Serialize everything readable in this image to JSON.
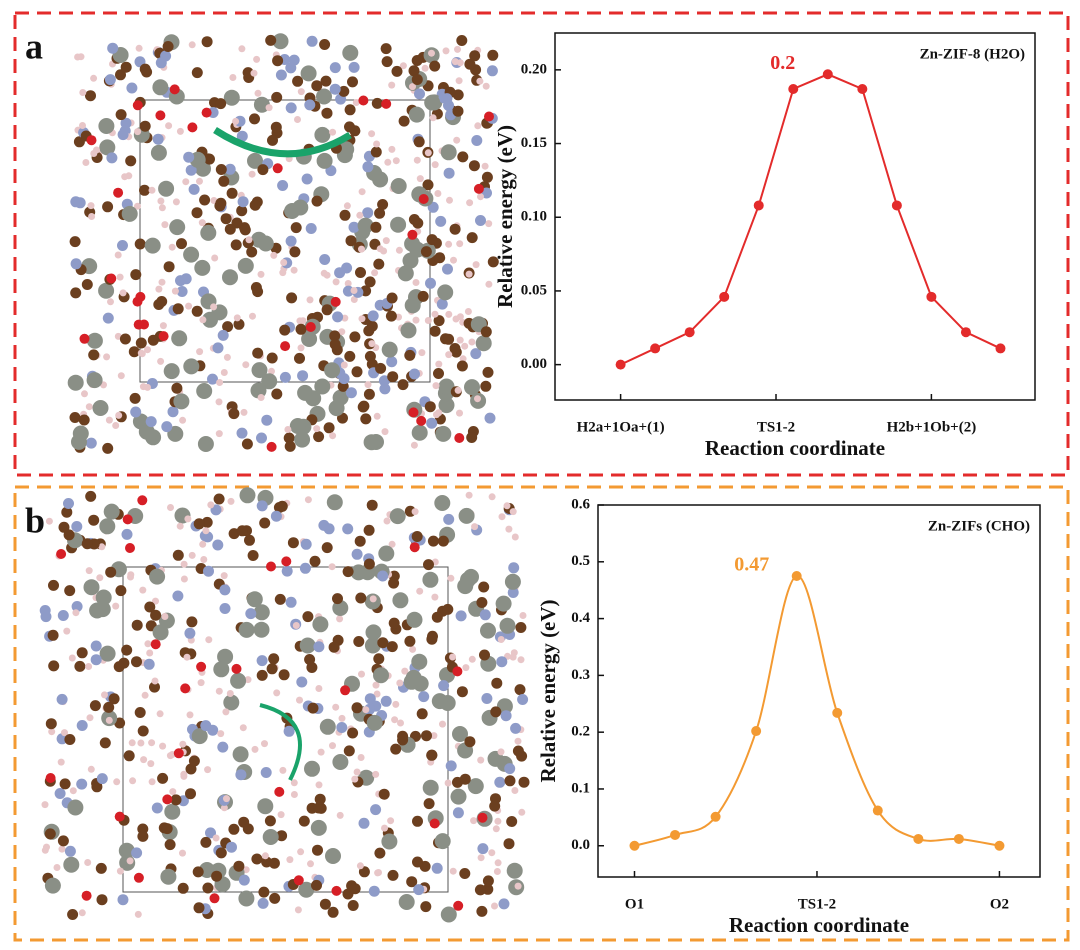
{
  "chart_data": [
    {
      "type": "line",
      "panel": "a",
      "title": "Zn-ZIF-8 (H2O)",
      "xlabel": "Reaction coordinate",
      "ylabel": "Relative energy (eV)",
      "color": "#e32b2b",
      "smooth": false,
      "x": [
        0,
        1,
        2,
        3,
        4,
        5,
        6,
        7,
        8,
        9,
        10,
        11
      ],
      "values": [
        0.0,
        0.011,
        0.022,
        0.046,
        0.108,
        0.187,
        0.197,
        0.187,
        0.108,
        0.046,
        0.022,
        0.011
      ],
      "peak_label": "0.2",
      "xlim": [
        -1.9,
        12
      ],
      "ylim": [
        -0.024,
        0.225
      ],
      "xticks": [
        {
          "value": 0,
          "label": "H2a+1Oa+(1)"
        },
        {
          "value": 4.5,
          "label": "TS1-2"
        },
        {
          "value": 9,
          "label": "H2b+1Ob+(2)"
        }
      ],
      "yticks": [
        {
          "value": 0,
          "label": "0.00"
        },
        {
          "value": 0.05,
          "label": "0.05"
        },
        {
          "value": 0.1,
          "label": "0.10"
        },
        {
          "value": 0.15,
          "label": "0.15"
        },
        {
          "value": 0.2,
          "label": "0.20"
        }
      ]
    },
    {
      "type": "line",
      "panel": "b",
      "title": "Zn-ZIFs (CHO)",
      "xlabel": "Reaction coordinate",
      "ylabel": "Relative energy (eV)",
      "color": "#f39a32",
      "smooth": true,
      "x": [
        0,
        1,
        2,
        3,
        4,
        5,
        6,
        7,
        8,
        9
      ],
      "values": [
        0.0,
        0.019,
        0.051,
        0.202,
        0.475,
        0.234,
        0.062,
        0.012,
        0.012,
        0.0
      ],
      "peak_label": "0.47",
      "xlim": [
        -0.9,
        10
      ],
      "ylim": [
        -0.055,
        0.6
      ],
      "xticks": [
        {
          "value": 0,
          "label": "O1"
        },
        {
          "value": 4.5,
          "label": "TS1-2"
        },
        {
          "value": 9,
          "label": "O2"
        }
      ],
      "yticks": [
        {
          "value": 0,
          "label": "0.0"
        },
        {
          "value": 0.1,
          "label": "0.1"
        },
        {
          "value": 0.2,
          "label": "0.2"
        },
        {
          "value": 0.3,
          "label": "0.3"
        },
        {
          "value": 0.4,
          "label": "0.4"
        },
        {
          "value": 0.5,
          "label": "0.5"
        },
        {
          "value": 0.6,
          "label": "0.6"
        }
      ]
    }
  ]
}
